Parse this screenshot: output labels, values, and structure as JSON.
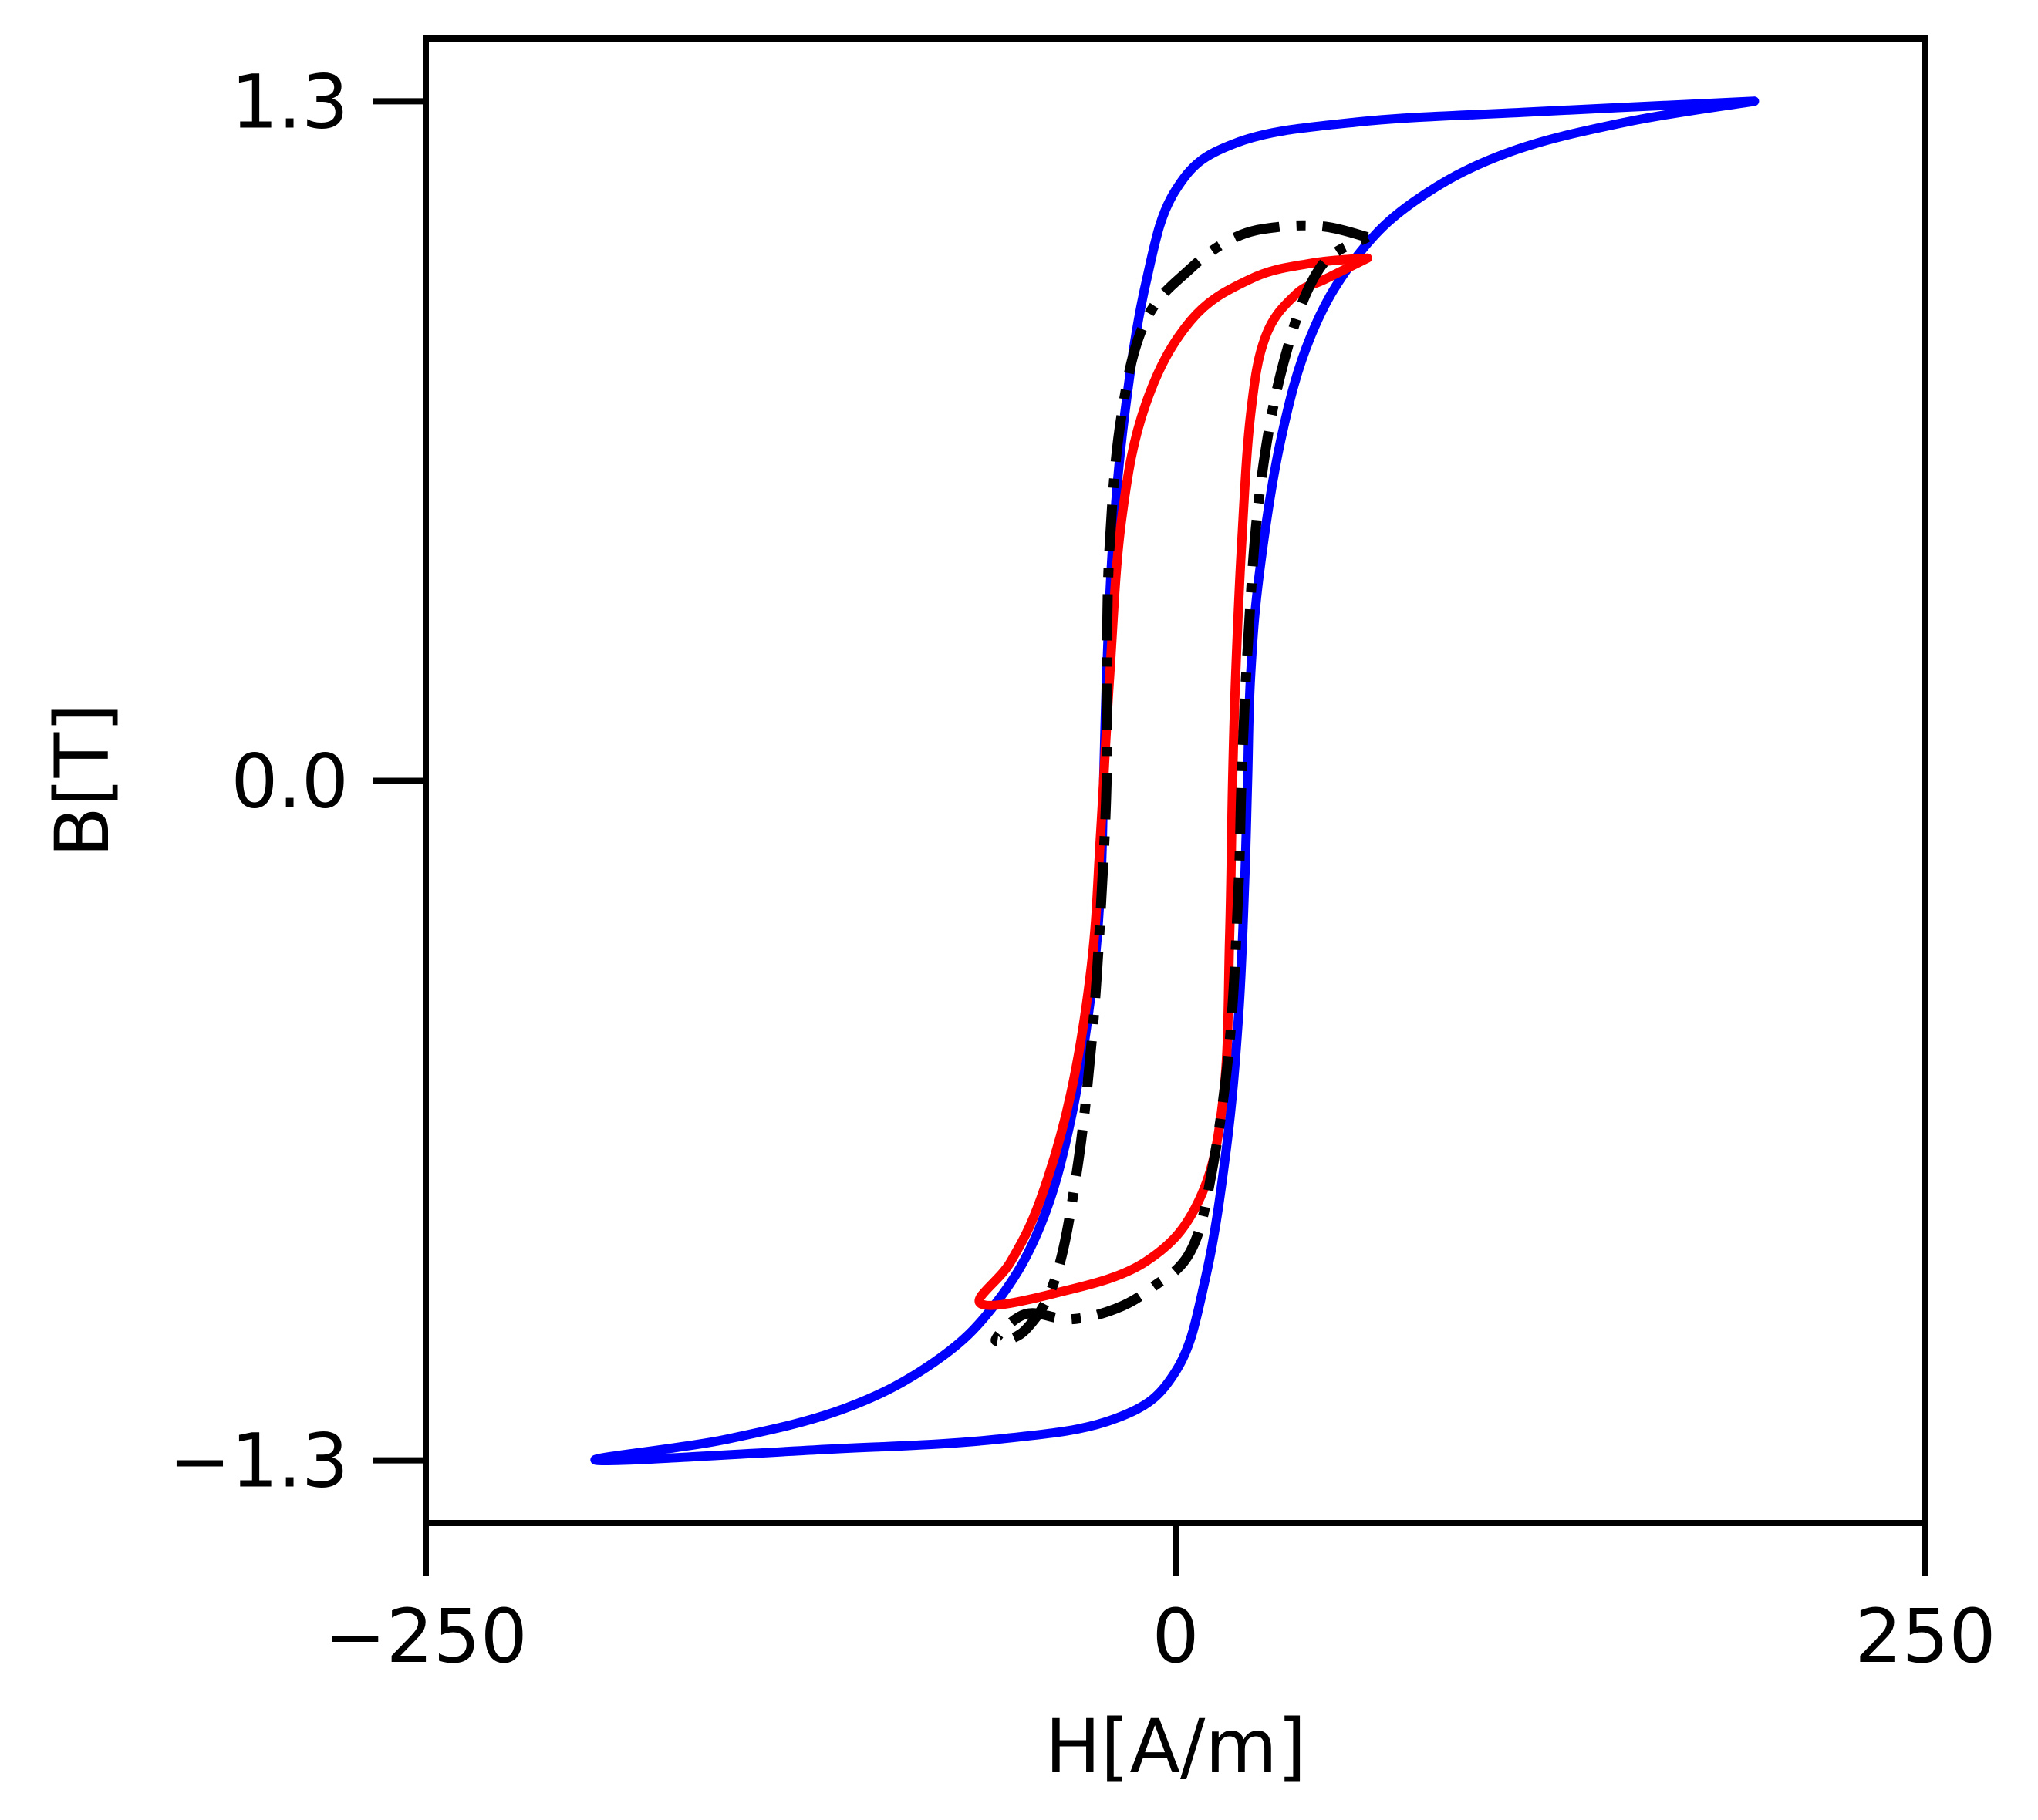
{
  "chart_data": {
    "type": "line",
    "title": "",
    "xlabel": "H[A/m]",
    "ylabel": "B[T]",
    "xlim": [
      -250,
      250
    ],
    "ylim": [
      -1.42,
      1.42
    ],
    "xticks": [
      -250,
      0,
      250
    ],
    "xtick_labels": [
      "−250",
      "0",
      "250"
    ],
    "yticks": [
      -1.3,
      0.0,
      1.3
    ],
    "ytick_labels": [
      "−1.3",
      "0.0",
      "1.3"
    ],
    "grid": false,
    "legend": "none",
    "series": [
      {
        "color": "#0000ff",
        "style": "solid",
        "points": [
          [
            193,
            1.3
          ],
          [
            150,
            1.26
          ],
          [
            110,
            1.2
          ],
          [
            80,
            1.11
          ],
          [
            60,
            1.0
          ],
          [
            45,
            0.85
          ],
          [
            35,
            0.65
          ],
          [
            28,
            0.4
          ],
          [
            25,
            0.2
          ],
          [
            24,
            0.0
          ],
          [
            23,
            -0.2
          ],
          [
            21,
            -0.45
          ],
          [
            17,
            -0.7
          ],
          [
            10,
            -0.95
          ],
          [
            0,
            -1.13
          ],
          [
            -20,
            -1.22
          ],
          [
            -60,
            -1.26
          ],
          [
            -120,
            -1.28
          ],
          [
            -193,
            -1.3
          ],
          [
            -150,
            -1.26
          ],
          [
            -110,
            -1.2
          ],
          [
            -80,
            -1.11
          ],
          [
            -60,
            -1.0
          ],
          [
            -45,
            -0.85
          ],
          [
            -35,
            -0.65
          ],
          [
            -28,
            -0.4
          ],
          [
            -25,
            -0.2
          ],
          [
            -24,
            0.0
          ],
          [
            -23,
            0.2
          ],
          [
            -21,
            0.45
          ],
          [
            -17,
            0.7
          ],
          [
            -10,
            0.95
          ],
          [
            0,
            1.13
          ],
          [
            20,
            1.22
          ],
          [
            60,
            1.26
          ],
          [
            120,
            1.28
          ],
          [
            193,
            1.3
          ]
        ]
      },
      {
        "color": "#ff0000",
        "style": "solid",
        "points": [
          [
            64,
            1.0
          ],
          [
            50,
            0.96
          ],
          [
            40,
            0.93
          ],
          [
            30,
            0.85
          ],
          [
            25,
            0.7
          ],
          [
            22,
            0.45
          ],
          [
            20,
            0.2
          ],
          [
            19,
            0.0
          ],
          [
            18,
            -0.3
          ],
          [
            16,
            -0.6
          ],
          [
            8,
            -0.8
          ],
          [
            -10,
            -0.92
          ],
          [
            -40,
            -0.98
          ],
          [
            -65,
            -1.0
          ],
          [
            -55,
            -0.92
          ],
          [
            -45,
            -0.8
          ],
          [
            -35,
            -0.6
          ],
          [
            -28,
            -0.35
          ],
          [
            -25,
            -0.1
          ],
          [
            -22,
            0.2
          ],
          [
            -18,
            0.5
          ],
          [
            -10,
            0.72
          ],
          [
            5,
            0.88
          ],
          [
            25,
            0.96
          ],
          [
            45,
            0.99
          ],
          [
            64,
            1.0
          ]
        ]
      },
      {
        "color": "#000000",
        "style": "dashdot",
        "points": [
          [
            64,
            1.04
          ],
          [
            50,
            1.06
          ],
          [
            35,
            1.06
          ],
          [
            20,
            1.04
          ],
          [
            5,
            0.98
          ],
          [
            -10,
            0.88
          ],
          [
            -18,
            0.7
          ],
          [
            -22,
            0.45
          ],
          [
            -23,
            0.2
          ],
          [
            -23,
            0.0
          ],
          [
            -25,
            -0.25
          ],
          [
            -28,
            -0.5
          ],
          [
            -33,
            -0.75
          ],
          [
            -40,
            -0.95
          ],
          [
            -50,
            -1.05
          ],
          [
            -60,
            -1.07
          ],
          [
            -50,
            -1.02
          ],
          [
            -35,
            -1.03
          ],
          [
            -20,
            -1.01
          ],
          [
            -8,
            -0.97
          ],
          [
            5,
            -0.9
          ],
          [
            12,
            -0.75
          ],
          [
            18,
            -0.5
          ],
          [
            21,
            -0.2
          ],
          [
            22,
            0.0
          ],
          [
            24,
            0.25
          ],
          [
            28,
            0.55
          ],
          [
            36,
            0.8
          ],
          [
            48,
            0.98
          ],
          [
            64,
            1.04
          ]
        ]
      }
    ]
  }
}
